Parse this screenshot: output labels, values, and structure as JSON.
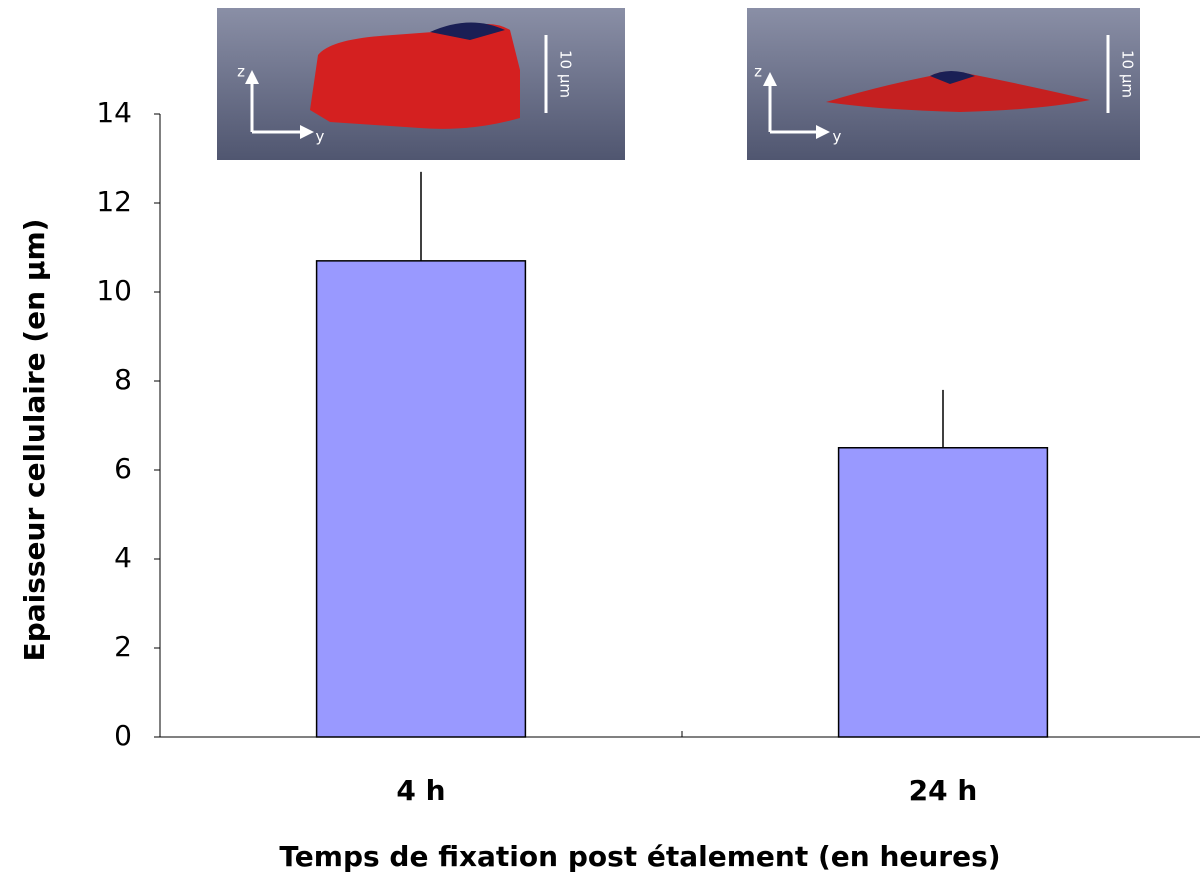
{
  "chart_data": {
    "type": "bar",
    "x_label": "Temps de fixation post étalement (en heures)",
    "y_label": "Epaisseur cellulaire (en µm)",
    "categories": [
      "4 h",
      "24 h"
    ],
    "values": [
      10.7,
      6.5
    ],
    "errors": [
      2.0,
      1.3
    ],
    "color": "#9999ff",
    "ylim": [
      0,
      14
    ],
    "yticks": [
      0,
      2,
      4,
      6,
      8,
      10,
      12,
      14
    ],
    "insets": [
      {
        "scale_label": "10 µm",
        "axis_labels": [
          "z",
          "y"
        ]
      },
      {
        "scale_label": "10 µm",
        "axis_labels": [
          "z",
          "y"
        ]
      }
    ]
  }
}
